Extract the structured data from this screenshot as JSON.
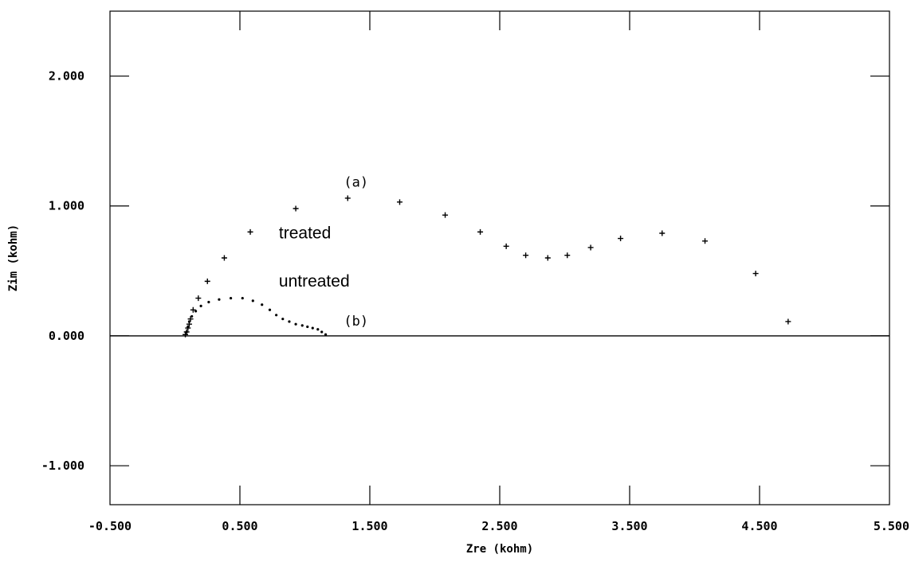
{
  "chart_data": {
    "type": "scatter",
    "xlabel": "Zre (kohm)",
    "ylabel": "Zim (kohm)",
    "xlim": [
      -0.5,
      5.5
    ],
    "ylim": [
      -1.3,
      2.5
    ],
    "x_tick_labels": [
      "-0.500",
      "0.500",
      "1.500",
      "2.500",
      "3.500",
      "4.500",
      "5.500"
    ],
    "y_tick_labels": [
      "2.000",
      "1.000",
      "0.000",
      "-1.000"
    ],
    "grid": false,
    "zero_line": true,
    "annotations": [
      {
        "text": "(a)",
        "x": 1.3,
        "y": 1.15
      },
      {
        "text": "(b)",
        "x": 1.3,
        "y": 0.08
      },
      {
        "text": "treated",
        "x": 0.8,
        "y": 0.75
      },
      {
        "text": "untreated",
        "x": 0.8,
        "y": 0.38
      }
    ],
    "series": [
      {
        "name": "treated",
        "marker": "plus",
        "points": [
          [
            0.08,
            0.01
          ],
          [
            0.09,
            0.03
          ],
          [
            0.1,
            0.06
          ],
          [
            0.11,
            0.09
          ],
          [
            0.12,
            0.13
          ],
          [
            0.14,
            0.2
          ],
          [
            0.18,
            0.29
          ],
          [
            0.25,
            0.42
          ],
          [
            0.38,
            0.6
          ],
          [
            0.58,
            0.8
          ],
          [
            0.93,
            0.98
          ],
          [
            1.33,
            1.06
          ],
          [
            1.73,
            1.03
          ],
          [
            2.08,
            0.93
          ],
          [
            2.35,
            0.8
          ],
          [
            2.55,
            0.69
          ],
          [
            2.7,
            0.62
          ],
          [
            2.87,
            0.6
          ],
          [
            3.02,
            0.62
          ],
          [
            3.2,
            0.68
          ],
          [
            3.43,
            0.75
          ],
          [
            3.75,
            0.79
          ],
          [
            4.08,
            0.73
          ],
          [
            4.47,
            0.48
          ],
          [
            4.72,
            0.11
          ]
        ]
      },
      {
        "name": "untreated",
        "marker": "dot",
        "points": [
          [
            0.09,
            0.03
          ],
          [
            0.1,
            0.07
          ],
          [
            0.11,
            0.11
          ],
          [
            0.13,
            0.15
          ],
          [
            0.16,
            0.19
          ],
          [
            0.2,
            0.23
          ],
          [
            0.26,
            0.26
          ],
          [
            0.34,
            0.28
          ],
          [
            0.43,
            0.29
          ],
          [
            0.52,
            0.29
          ],
          [
            0.6,
            0.27
          ],
          [
            0.67,
            0.24
          ],
          [
            0.73,
            0.2
          ],
          [
            0.78,
            0.16
          ],
          [
            0.83,
            0.13
          ],
          [
            0.88,
            0.11
          ],
          [
            0.93,
            0.09
          ],
          [
            0.98,
            0.08
          ],
          [
            1.02,
            0.07
          ],
          [
            1.06,
            0.06
          ],
          [
            1.1,
            0.05
          ],
          [
            1.13,
            0.03
          ],
          [
            1.16,
            0.01
          ]
        ]
      }
    ]
  }
}
